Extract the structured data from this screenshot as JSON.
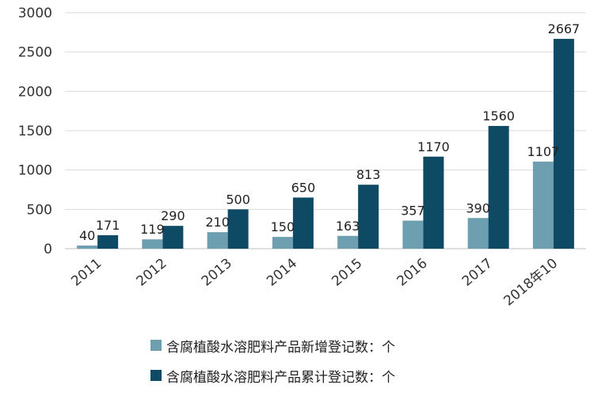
{
  "chart_data": {
    "type": "bar",
    "categories": [
      "2011",
      "2012",
      "2013",
      "2014",
      "2015",
      "2016",
      "2017",
      "2018年10"
    ],
    "series": [
      {
        "name": "含腐植酸水溶肥料产品新增登记数：个",
        "values": [
          40,
          119,
          210,
          150,
          163,
          357,
          390,
          1107
        ],
        "color": "#6e9fb1"
      },
      {
        "name": "含腐植酸水溶肥料产品累计登记数：个",
        "values": [
          171,
          290,
          500,
          650,
          813,
          1170,
          1560,
          2667
        ],
        "color": "#0e4a64"
      }
    ],
    "ylim": [
      0,
      3000
    ],
    "yticks": [
      0,
      500,
      1000,
      1500,
      2000,
      2500,
      3000
    ],
    "xlabel": "",
    "ylabel": "",
    "grid": true,
    "legend_position": "bottom"
  }
}
